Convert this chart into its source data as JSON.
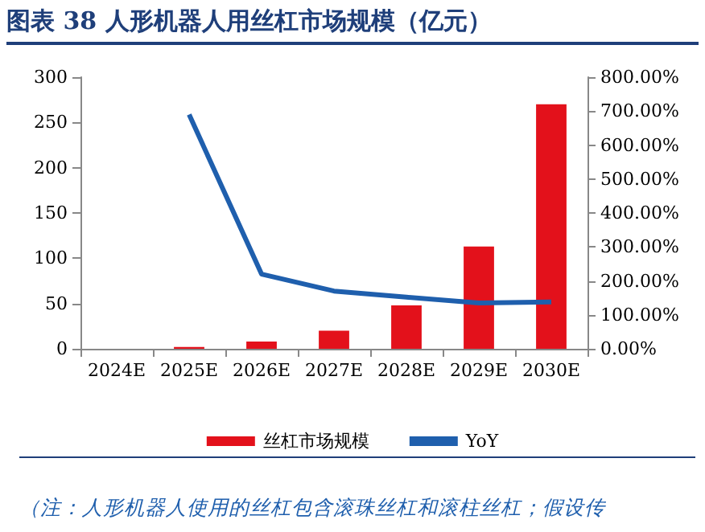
{
  "chart_data": {
    "type": "bar",
    "title": "图表 38   人形机器人用丝杠市场规模（亿元）",
    "categories": [
      "2024E",
      "2025E",
      "2026E",
      "2027E",
      "2028E",
      "2029E",
      "2030E"
    ],
    "series": [
      {
        "name": "丝杠市场规模",
        "color": "#e3111b",
        "values": [
          null,
          2,
          8,
          20,
          48,
          113,
          270
        ]
      },
      {
        "name": "YoY",
        "type": "line",
        "axis": "y2",
        "color": "#1f5fad",
        "values": [
          null,
          690,
          220,
          170,
          152,
          135,
          138
        ]
      }
    ],
    "ylim": [
      0,
      300
    ],
    "yticks": [
      0,
      50,
      100,
      150,
      200,
      250,
      300
    ],
    "y2lim": [
      0,
      800
    ],
    "y2ticks": [
      {
        "value": 0,
        "label": "0.00%"
      },
      {
        "value": 100,
        "label": "100.00%"
      },
      {
        "value": 200,
        "label": "200.00%"
      },
      {
        "value": 300,
        "label": "300.00%"
      },
      {
        "value": 400,
        "label": "400.00%"
      },
      {
        "value": 500,
        "label": "500.00%"
      },
      {
        "value": 600,
        "label": "600.00%"
      },
      {
        "value": 700,
        "label": "700.00%"
      },
      {
        "value": 800,
        "label": "800.00%"
      }
    ],
    "grid": false,
    "legend": "bottom",
    "marker": "none",
    "annotations": [
      "（注：人形机器人使用的丝杠包含滚珠丝杠和滚柱丝杠；假设传"
    ]
  }
}
